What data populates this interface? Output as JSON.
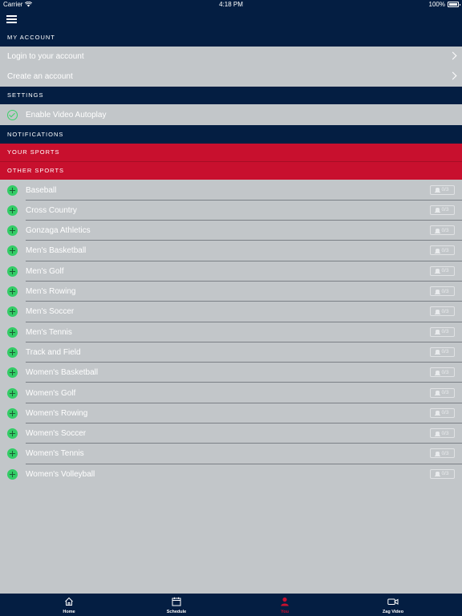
{
  "status_bar": {
    "carrier": "Carrier",
    "time": "4:18 PM",
    "battery": "100%"
  },
  "account": {
    "header": "MY ACCOUNT",
    "items": [
      {
        "label": "Login to your account"
      },
      {
        "label": "Create an account"
      }
    ]
  },
  "settings": {
    "header": "SETTINGS",
    "autoplay_label": "Enable Video Autoplay"
  },
  "notifications": {
    "header": "NOTIFICATIONS"
  },
  "your_sports": {
    "header": "YOUR SPORTS"
  },
  "other_sports": {
    "header": "OTHER SPORTS",
    "badge_text": "0/3",
    "items": [
      "Baseball",
      "Cross Country",
      "Gonzaga Athletics",
      "Men's Basketball",
      "Men's Golf",
      "Men's Rowing",
      "Men's Soccer",
      "Men's Tennis",
      "Track and Field",
      "Women's Basketball",
      "Women's Golf",
      "Women's Rowing",
      "Women's Soccer",
      "Women's Tennis",
      "Women's Volleyball"
    ]
  },
  "tabs": [
    {
      "label": "Home",
      "icon": "home-icon"
    },
    {
      "label": "Schedule",
      "icon": "calendar-icon"
    },
    {
      "label": "You",
      "icon": "person-icon",
      "active": true
    },
    {
      "label": "Zag Video",
      "icon": "video-icon"
    }
  ],
  "colors": {
    "navy": "#041e42",
    "red": "#c8102e",
    "green": "#33cc66",
    "gray": "#c2c6c9"
  }
}
